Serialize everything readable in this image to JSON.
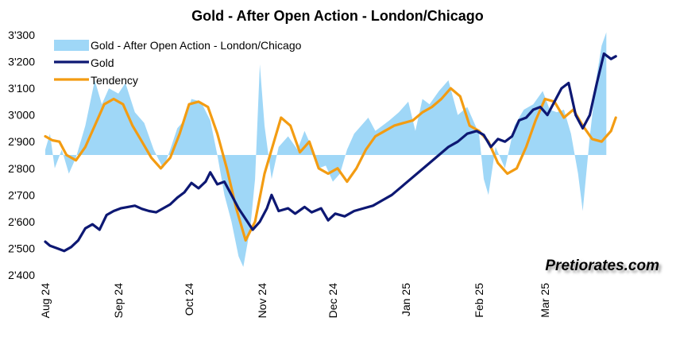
{
  "chart_data": {
    "type": "line",
    "title": "Gold - After Open Action - London/Chicago",
    "watermark": "Pretiorates.com",
    "ylim": [
      2400,
      3300
    ],
    "yticks": [
      2400,
      2500,
      2600,
      2700,
      2800,
      2900,
      3000,
      3100,
      3200,
      3300
    ],
    "ytick_labels": [
      "2'400",
      "2'500",
      "2'600",
      "2'700",
      "2'800",
      "2'900",
      "3'000",
      "3'100",
      "3'200",
      "3'300"
    ],
    "x_range": [
      "2024-08-01",
      "2025-04-05"
    ],
    "xticks": [
      "2024-08-01",
      "2024-09-01",
      "2024-10-01",
      "2024-11-01",
      "2024-12-01",
      "2025-01-01",
      "2025-02-01",
      "2025-03-01"
    ],
    "xtick_labels": [
      "Aug 24",
      "Sep 24",
      "Oct 24",
      "Nov 24",
      "Dec 24",
      "Jan 25",
      "Feb 25",
      "Mar 25"
    ],
    "area_baseline": 2850,
    "legend_position": "top-left",
    "grid": false,
    "series": [
      {
        "name": "Gold - After Open Action - London/Chicago",
        "kind": "area",
        "color": "#9fd7f7",
        "points": [
          [
            "2024-08-01",
            2870
          ],
          [
            "2024-08-03",
            2930
          ],
          [
            "2024-08-05",
            2800
          ],
          [
            "2024-08-08",
            2870
          ],
          [
            "2024-08-11",
            2780
          ],
          [
            "2024-08-14",
            2840
          ],
          [
            "2024-08-18",
            2960
          ],
          [
            "2024-08-22",
            3130
          ],
          [
            "2024-08-25",
            3040
          ],
          [
            "2024-08-28",
            3100
          ],
          [
            "2024-09-01",
            3080
          ],
          [
            "2024-09-04",
            3120
          ],
          [
            "2024-09-08",
            3010
          ],
          [
            "2024-09-12",
            2970
          ],
          [
            "2024-09-16",
            2870
          ],
          [
            "2024-09-20",
            2800
          ],
          [
            "2024-09-23",
            2870
          ],
          [
            "2024-09-26",
            2950
          ],
          [
            "2024-09-29",
            2980
          ],
          [
            "2024-10-02",
            3060
          ],
          [
            "2024-10-06",
            3050
          ],
          [
            "2024-10-10",
            2980
          ],
          [
            "2024-10-13",
            2850
          ],
          [
            "2024-10-16",
            2700
          ],
          [
            "2024-10-19",
            2600
          ],
          [
            "2024-10-22",
            2470
          ],
          [
            "2024-10-24",
            2430
          ],
          [
            "2024-10-27",
            2580
          ],
          [
            "2024-10-29",
            2760
          ],
          [
            "2024-10-31",
            3190
          ],
          [
            "2024-11-02",
            2960
          ],
          [
            "2024-11-05",
            2760
          ],
          [
            "2024-11-08",
            2880
          ],
          [
            "2024-11-12",
            2920
          ],
          [
            "2024-11-16",
            2870
          ],
          [
            "2024-11-19",
            2940
          ],
          [
            "2024-11-22",
            2880
          ],
          [
            "2024-11-25",
            2800
          ],
          [
            "2024-11-28",
            2810
          ],
          [
            "2024-12-01",
            2750
          ],
          [
            "2024-12-04",
            2780
          ],
          [
            "2024-12-07",
            2870
          ],
          [
            "2024-12-10",
            2930
          ],
          [
            "2024-12-13",
            2960
          ],
          [
            "2024-12-16",
            2990
          ],
          [
            "2024-12-19",
            2940
          ],
          [
            "2024-12-22",
            2960
          ],
          [
            "2024-12-25",
            2980
          ],
          [
            "2024-12-29",
            3010
          ],
          [
            "2025-01-02",
            3050
          ],
          [
            "2025-01-05",
            2940
          ],
          [
            "2025-01-08",
            3060
          ],
          [
            "2025-01-11",
            3040
          ],
          [
            "2025-01-15",
            3090
          ],
          [
            "2025-01-19",
            3130
          ],
          [
            "2025-01-23",
            3000
          ],
          [
            "2025-01-27",
            3030
          ],
          [
            "2025-02-01",
            2930
          ],
          [
            "2025-02-03",
            2760
          ],
          [
            "2025-02-05",
            2700
          ],
          [
            "2025-02-08",
            2880
          ],
          [
            "2025-02-12",
            2800
          ],
          [
            "2025-02-16",
            2960
          ],
          [
            "2025-02-20",
            3020
          ],
          [
            "2025-02-24",
            3040
          ],
          [
            "2025-02-28",
            3090
          ],
          [
            "2025-03-03",
            3020
          ],
          [
            "2025-03-06",
            3010
          ],
          [
            "2025-03-09",
            3020
          ],
          [
            "2025-03-12",
            2930
          ],
          [
            "2025-03-15",
            2780
          ],
          [
            "2025-03-17",
            2640
          ],
          [
            "2025-03-20",
            2920
          ],
          [
            "2025-03-23",
            3150
          ],
          [
            "2025-03-25",
            3260
          ],
          [
            "2025-03-27",
            3310
          ]
        ]
      },
      {
        "name": "Gold",
        "kind": "line",
        "color": "#0d1873",
        "points": [
          [
            "2024-08-01",
            2525
          ],
          [
            "2024-08-03",
            2510
          ],
          [
            "2024-08-06",
            2500
          ],
          [
            "2024-08-09",
            2490
          ],
          [
            "2024-08-12",
            2505
          ],
          [
            "2024-08-15",
            2530
          ],
          [
            "2024-08-18",
            2575
          ],
          [
            "2024-08-21",
            2590
          ],
          [
            "2024-08-24",
            2570
          ],
          [
            "2024-08-27",
            2625
          ],
          [
            "2024-08-30",
            2640
          ],
          [
            "2024-09-02",
            2650
          ],
          [
            "2024-09-05",
            2655
          ],
          [
            "2024-09-08",
            2660
          ],
          [
            "2024-09-11",
            2648
          ],
          [
            "2024-09-14",
            2640
          ],
          [
            "2024-09-17",
            2635
          ],
          [
            "2024-09-20",
            2650
          ],
          [
            "2024-09-23",
            2665
          ],
          [
            "2024-09-26",
            2690
          ],
          [
            "2024-09-29",
            2710
          ],
          [
            "2024-10-02",
            2745
          ],
          [
            "2024-10-05",
            2725
          ],
          [
            "2024-10-08",
            2750
          ],
          [
            "2024-10-10",
            2785
          ],
          [
            "2024-10-13",
            2740
          ],
          [
            "2024-10-16",
            2750
          ],
          [
            "2024-10-19",
            2700
          ],
          [
            "2024-10-22",
            2650
          ],
          [
            "2024-10-25",
            2610
          ],
          [
            "2024-10-28",
            2570
          ],
          [
            "2024-10-31",
            2600
          ],
          [
            "2024-11-03",
            2650
          ],
          [
            "2024-11-05",
            2700
          ],
          [
            "2024-11-08",
            2640
          ],
          [
            "2024-11-12",
            2650
          ],
          [
            "2024-11-15",
            2630
          ],
          [
            "2024-11-19",
            2655
          ],
          [
            "2024-11-22",
            2635
          ],
          [
            "2024-11-26",
            2650
          ],
          [
            "2024-11-29",
            2605
          ],
          [
            "2024-12-02",
            2630
          ],
          [
            "2024-12-06",
            2620
          ],
          [
            "2024-12-10",
            2640
          ],
          [
            "2024-12-14",
            2650
          ],
          [
            "2024-12-18",
            2660
          ],
          [
            "2024-12-22",
            2680
          ],
          [
            "2024-12-26",
            2700
          ],
          [
            "2024-12-30",
            2730
          ],
          [
            "2025-01-03",
            2760
          ],
          [
            "2025-01-07",
            2790
          ],
          [
            "2025-01-11",
            2820
          ],
          [
            "2025-01-15",
            2850
          ],
          [
            "2025-01-19",
            2880
          ],
          [
            "2025-01-23",
            2900
          ],
          [
            "2025-01-27",
            2930
          ],
          [
            "2025-01-31",
            2940
          ],
          [
            "2025-02-03",
            2925
          ],
          [
            "2025-02-06",
            2880
          ],
          [
            "2025-02-09",
            2910
          ],
          [
            "2025-02-12",
            2900
          ],
          [
            "2025-02-15",
            2920
          ],
          [
            "2025-02-18",
            2980
          ],
          [
            "2025-02-21",
            2990
          ],
          [
            "2025-02-24",
            3020
          ],
          [
            "2025-02-27",
            3030
          ],
          [
            "2025-03-02",
            3000
          ],
          [
            "2025-03-05",
            3050
          ],
          [
            "2025-03-08",
            3100
          ],
          [
            "2025-03-11",
            3120
          ],
          [
            "2025-03-14",
            3000
          ],
          [
            "2025-03-17",
            2950
          ],
          [
            "2025-03-20",
            3000
          ],
          [
            "2025-03-23",
            3120
          ],
          [
            "2025-03-26",
            3230
          ],
          [
            "2025-03-29",
            3210
          ],
          [
            "2025-03-31",
            3220
          ]
        ]
      },
      {
        "name": "Tendency",
        "kind": "line",
        "color": "#f39c12",
        "points": [
          [
            "2024-08-01",
            2920
          ],
          [
            "2024-08-04",
            2905
          ],
          [
            "2024-08-07",
            2900
          ],
          [
            "2024-08-10",
            2850
          ],
          [
            "2024-08-14",
            2830
          ],
          [
            "2024-08-18",
            2880
          ],
          [
            "2024-08-22",
            2960
          ],
          [
            "2024-08-26",
            3040
          ],
          [
            "2024-08-30",
            3060
          ],
          [
            "2024-09-03",
            3040
          ],
          [
            "2024-09-07",
            2960
          ],
          [
            "2024-09-11",
            2900
          ],
          [
            "2024-09-15",
            2840
          ],
          [
            "2024-09-19",
            2800
          ],
          [
            "2024-09-23",
            2840
          ],
          [
            "2024-09-27",
            2930
          ],
          [
            "2024-10-01",
            3040
          ],
          [
            "2024-10-05",
            3050
          ],
          [
            "2024-10-09",
            3030
          ],
          [
            "2024-10-13",
            2930
          ],
          [
            "2024-10-17",
            2800
          ],
          [
            "2024-10-21",
            2650
          ],
          [
            "2024-10-25",
            2530
          ],
          [
            "2024-10-29",
            2600
          ],
          [
            "2024-11-02",
            2780
          ],
          [
            "2024-11-06",
            2900
          ],
          [
            "2024-11-09",
            2990
          ],
          [
            "2024-11-13",
            2960
          ],
          [
            "2024-11-17",
            2860
          ],
          [
            "2024-11-21",
            2900
          ],
          [
            "2024-11-25",
            2800
          ],
          [
            "2024-11-29",
            2780
          ],
          [
            "2024-12-03",
            2800
          ],
          [
            "2024-12-07",
            2750
          ],
          [
            "2024-12-11",
            2800
          ],
          [
            "2024-12-15",
            2870
          ],
          [
            "2024-12-19",
            2920
          ],
          [
            "2024-12-23",
            2940
          ],
          [
            "2024-12-27",
            2960
          ],
          [
            "2024-12-31",
            2970
          ],
          [
            "2025-01-04",
            2980
          ],
          [
            "2025-01-08",
            3010
          ],
          [
            "2025-01-12",
            3030
          ],
          [
            "2025-01-16",
            3060
          ],
          [
            "2025-01-20",
            3100
          ],
          [
            "2025-01-24",
            3070
          ],
          [
            "2025-01-28",
            2960
          ],
          [
            "2025-02-01",
            2940
          ],
          [
            "2025-02-05",
            2900
          ],
          [
            "2025-02-09",
            2820
          ],
          [
            "2025-02-13",
            2780
          ],
          [
            "2025-02-17",
            2800
          ],
          [
            "2025-02-21",
            2880
          ],
          [
            "2025-02-25",
            2980
          ],
          [
            "2025-03-01",
            3060
          ],
          [
            "2025-03-05",
            3050
          ],
          [
            "2025-03-09",
            2990
          ],
          [
            "2025-03-13",
            3020
          ],
          [
            "2025-03-17",
            2960
          ],
          [
            "2025-03-21",
            2910
          ],
          [
            "2025-03-25",
            2900
          ],
          [
            "2025-03-29",
            2940
          ],
          [
            "2025-03-31",
            2990
          ]
        ]
      }
    ]
  }
}
